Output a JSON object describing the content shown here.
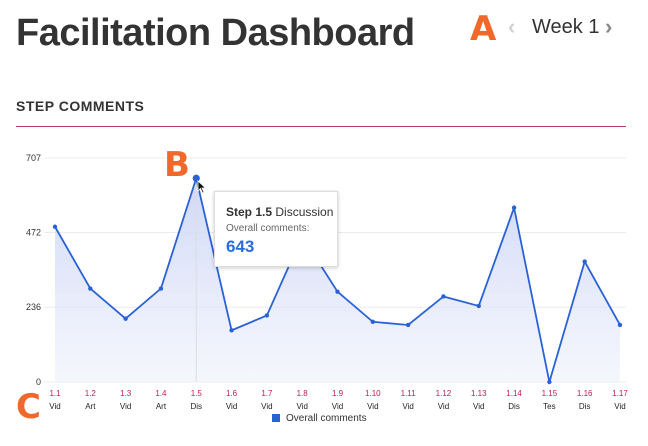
{
  "header": {
    "title": "Facilitation Dashboard",
    "marker_a": "A",
    "week_label": "Week 1",
    "prev_icon": "chevron-left-icon",
    "next_icon": "chevron-right-icon"
  },
  "section": {
    "title": "STEP COMMENTS"
  },
  "markers": {
    "b": "B",
    "c": "C"
  },
  "tooltip": {
    "step": "Step 1.5",
    "type": "Discussion",
    "metric": "Overall comments:",
    "value": "643"
  },
  "colors": {
    "accent": "#2a62d6",
    "rule": "#b83a76",
    "tick_step": "#c2185b",
    "marker": "#f0682a"
  },
  "chart_data": {
    "type": "area",
    "y_ticks": [
      "707",
      "472",
      "236",
      "0"
    ],
    "ylim": [
      0,
      707
    ],
    "categories": [
      "1.1",
      "1.2",
      "1.3",
      "1.4",
      "1.5",
      "1.6",
      "1.7",
      "1.8",
      "1.9",
      "1.10",
      "1.11",
      "1.12",
      "1.13",
      "1.14",
      "1.15",
      "1.16",
      "1.17"
    ],
    "sub_labels": [
      "Vid",
      "Art",
      "Vid",
      "Art",
      "Dis",
      "Vid",
      "Vid",
      "Vid",
      "Vid",
      "Vid",
      "Vid",
      "Vid",
      "Vid",
      "Dis",
      "Tes",
      "Dis",
      "Vid"
    ],
    "series": [
      {
        "name": "Overall comments",
        "values": [
          490,
          295,
          200,
          295,
          643,
          163,
          210,
          460,
          285,
          190,
          180,
          270,
          240,
          550,
          0,
          380,
          180
        ]
      }
    ],
    "highlight_index": 4,
    "grid": true,
    "legend": "bottom-center"
  }
}
